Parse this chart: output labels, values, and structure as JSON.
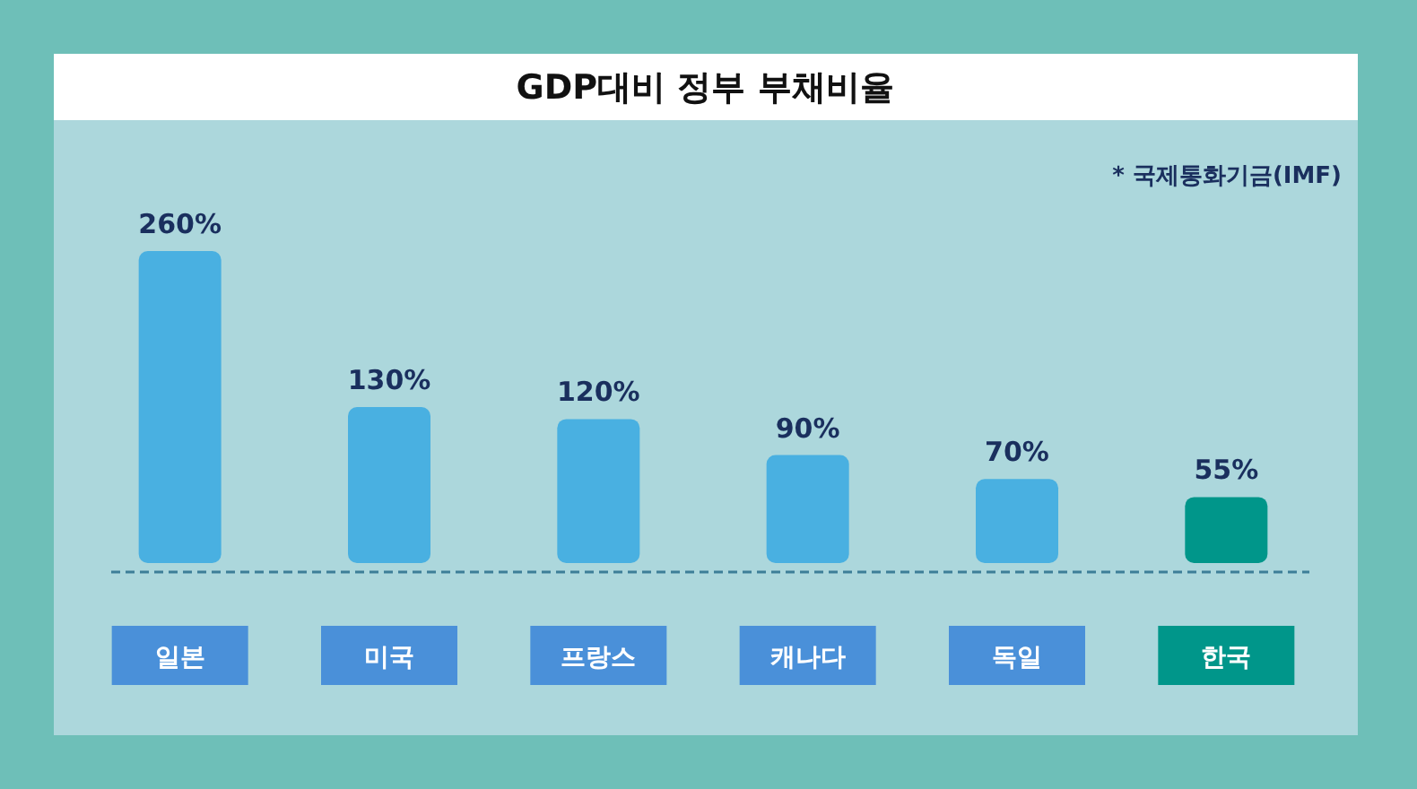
{
  "chart_data": {
    "type": "bar",
    "title": "GDP대비 정부 부채비율",
    "annotations": [
      "* 국제통화기금(IMF)"
    ],
    "categories": [
      "일본",
      "미국",
      "프랑스",
      "캐나다",
      "독일",
      "한국"
    ],
    "values": [
      260,
      130,
      120,
      90,
      70,
      55
    ],
    "value_labels": [
      "260%",
      "130%",
      "120%",
      "90%",
      "70%",
      "55%"
    ],
    "colors": [
      "#49b0e1",
      "#49b0e1",
      "#49b0e1",
      "#49b0e1",
      "#49b0e1",
      "#00968a"
    ]
  }
}
